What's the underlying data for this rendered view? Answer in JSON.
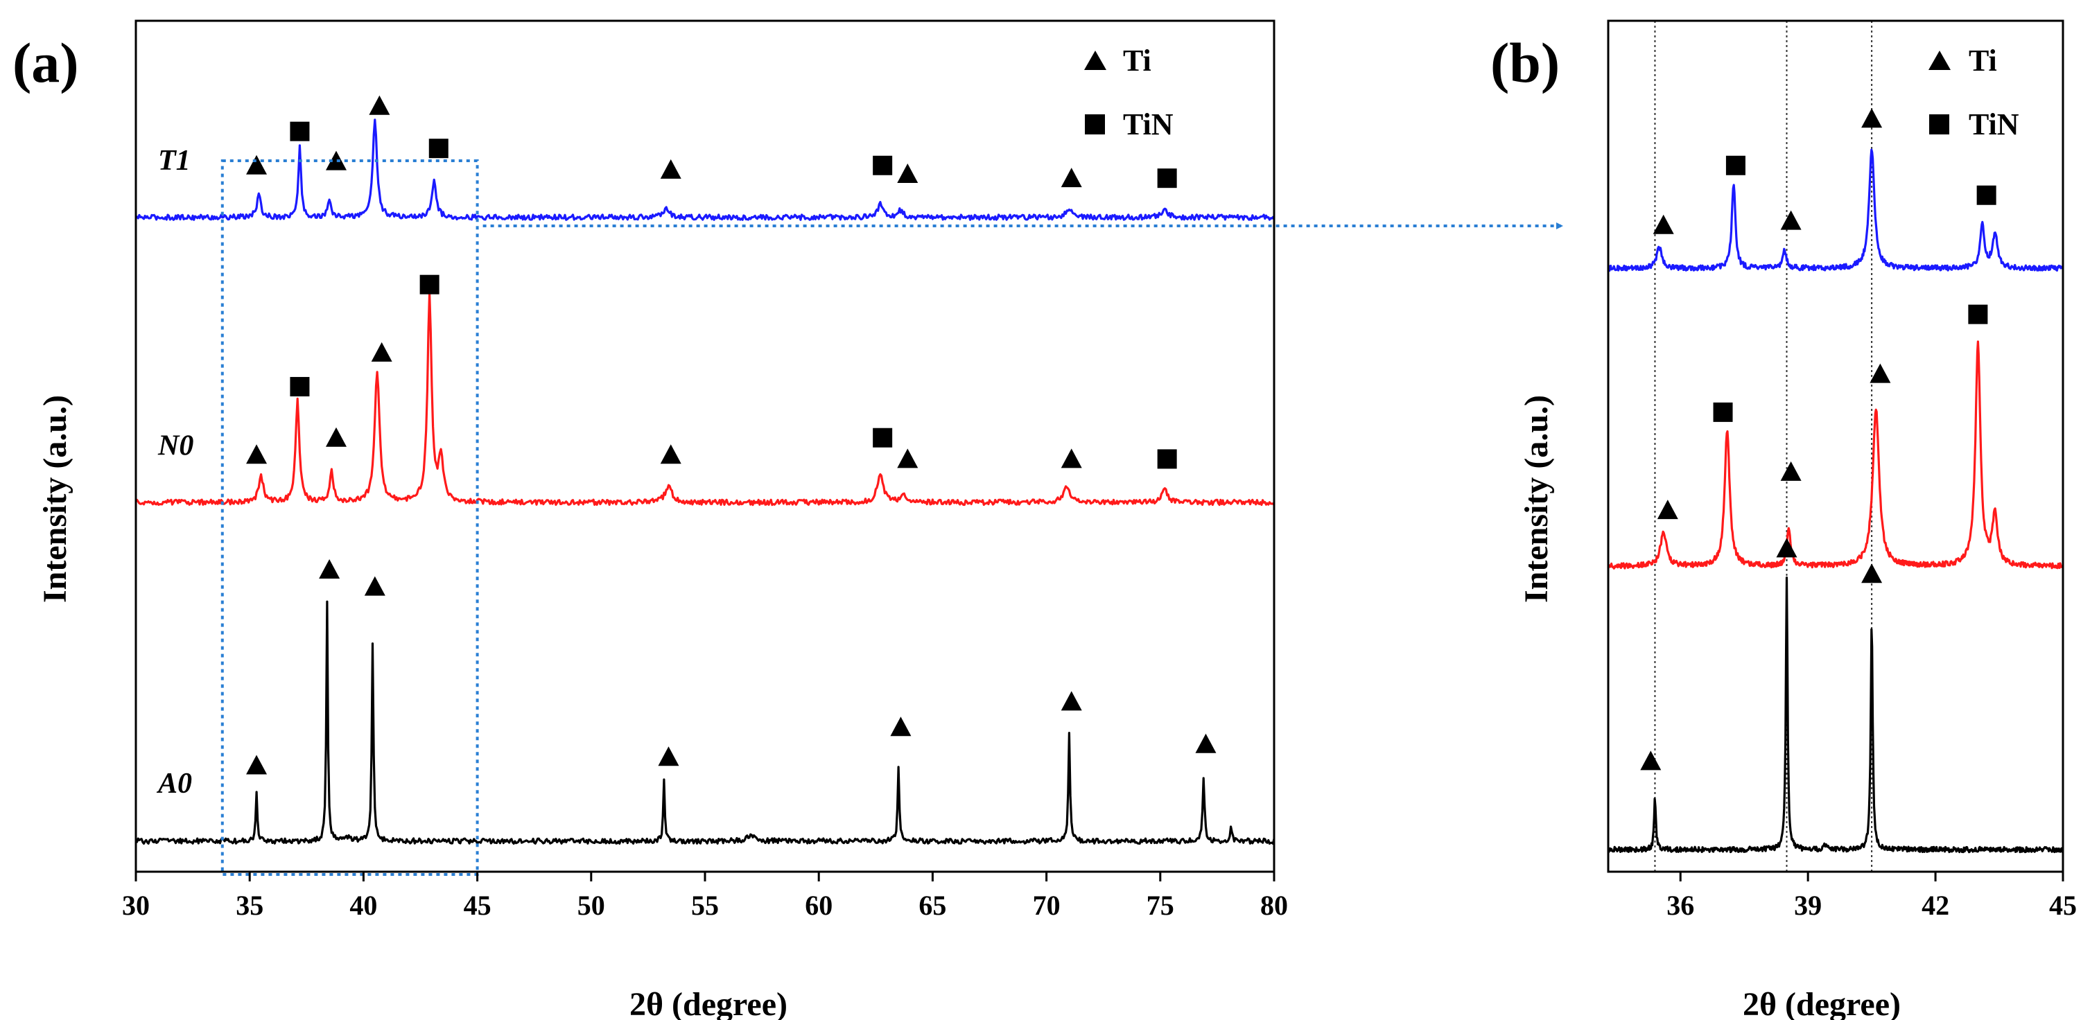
{
  "legend": {
    "ti_label": "Ti",
    "tin_label": "TiN"
  },
  "colors": {
    "T1": "#1a1aff",
    "N0": "#ff1a1a",
    "A0": "#000000",
    "zoom_box": "#2a7fd4",
    "axis": "#000000"
  },
  "chart_data": [
    {
      "panel_label": "(a)",
      "type": "line",
      "xlabel": "2θ (degree)",
      "ylabel": "Intensity (a.u.)",
      "xlim": [
        30,
        80
      ],
      "ylim": [
        0,
        10
      ],
      "xticks": [
        30,
        35,
        40,
        45,
        50,
        55,
        60,
        65,
        70,
        75,
        80
      ],
      "zoom_region": [
        33.8,
        45
      ],
      "series": [
        {
          "name": "T1",
          "offset": 7.6,
          "baseline": 0.09,
          "peaks": [
            [
              35.4,
              0.25,
              0.22
            ],
            [
              37.2,
              0.85,
              0.14
            ],
            [
              38.5,
              0.18,
              0.18
            ],
            [
              40.5,
              1.15,
              0.22
            ],
            [
              43.1,
              0.45,
              0.22
            ],
            [
              53.3,
              0.12,
              0.3
            ],
            [
              62.7,
              0.15,
              0.3
            ],
            [
              63.6,
              0.08,
              0.3
            ],
            [
              71.0,
              0.1,
              0.35
            ],
            [
              75.2,
              0.08,
              0.35
            ]
          ],
          "markers": [
            {
              "x": 35.3,
              "y": 8.3,
              "shape": "triangle"
            },
            {
              "x": 37.2,
              "y": 8.7,
              "shape": "square"
            },
            {
              "x": 38.8,
              "y": 8.35,
              "shape": "triangle"
            },
            {
              "x": 40.7,
              "y": 9.0,
              "shape": "triangle"
            },
            {
              "x": 43.3,
              "y": 8.5,
              "shape": "square"
            },
            {
              "x": 53.5,
              "y": 8.25,
              "shape": "triangle"
            },
            {
              "x": 62.8,
              "y": 8.3,
              "shape": "square"
            },
            {
              "x": 63.9,
              "y": 8.2,
              "shape": "triangle"
            },
            {
              "x": 71.1,
              "y": 8.15,
              "shape": "triangle"
            },
            {
              "x": 75.3,
              "y": 8.15,
              "shape": "square"
            }
          ]
        },
        {
          "name": "N0",
          "offset": 4.25,
          "baseline": 0.09,
          "peaks": [
            [
              35.5,
              0.3,
              0.25
            ],
            [
              37.1,
              1.2,
              0.2
            ],
            [
              38.6,
              0.35,
              0.2
            ],
            [
              40.6,
              1.55,
              0.25
            ],
            [
              42.9,
              2.4,
              0.22
            ],
            [
              43.4,
              0.5,
              0.25
            ],
            [
              53.4,
              0.2,
              0.35
            ],
            [
              62.7,
              0.35,
              0.3
            ],
            [
              63.7,
              0.1,
              0.3
            ],
            [
              70.9,
              0.18,
              0.35
            ],
            [
              75.2,
              0.15,
              0.3
            ]
          ],
          "markers": [
            {
              "x": 35.3,
              "y": 4.9,
              "shape": "triangle"
            },
            {
              "x": 37.2,
              "y": 5.7,
              "shape": "square"
            },
            {
              "x": 38.8,
              "y": 5.1,
              "shape": "triangle"
            },
            {
              "x": 40.8,
              "y": 6.1,
              "shape": "triangle"
            },
            {
              "x": 42.9,
              "y": 6.9,
              "shape": "square"
            },
            {
              "x": 53.5,
              "y": 4.9,
              "shape": "triangle"
            },
            {
              "x": 62.8,
              "y": 5.1,
              "shape": "square"
            },
            {
              "x": 63.9,
              "y": 4.85,
              "shape": "triangle"
            },
            {
              "x": 71.1,
              "y": 4.85,
              "shape": "triangle"
            },
            {
              "x": 75.3,
              "y": 4.85,
              "shape": "square"
            }
          ]
        },
        {
          "name": "A0",
          "offset": 0.28,
          "baseline": 0.08,
          "peaks": [
            [
              35.3,
              0.55,
              0.08
            ],
            [
              38.4,
              2.8,
              0.08
            ],
            [
              39.3,
              0.05,
              0.3
            ],
            [
              40.4,
              2.3,
              0.09
            ],
            [
              53.2,
              0.7,
              0.08
            ],
            [
              57.0,
              0.05,
              0.5
            ],
            [
              63.5,
              0.85,
              0.09
            ],
            [
              71.0,
              1.25,
              0.09
            ],
            [
              76.9,
              0.75,
              0.1
            ],
            [
              78.1,
              0.15,
              0.1
            ]
          ],
          "markers": [
            {
              "x": 35.3,
              "y": 1.25,
              "shape": "triangle"
            },
            {
              "x": 38.5,
              "y": 3.55,
              "shape": "triangle"
            },
            {
              "x": 40.5,
              "y": 3.35,
              "shape": "triangle"
            },
            {
              "x": 53.4,
              "y": 1.35,
              "shape": "triangle"
            },
            {
              "x": 63.6,
              "y": 1.7,
              "shape": "triangle"
            },
            {
              "x": 71.1,
              "y": 2.0,
              "shape": "triangle"
            },
            {
              "x": 77.0,
              "y": 1.5,
              "shape": "triangle"
            }
          ]
        }
      ]
    },
    {
      "panel_label": "(b)",
      "type": "line",
      "xlabel": "2θ (degree)",
      "ylabel": "Intensity (a.u.)",
      "xlim": [
        34.3,
        45
      ],
      "ylim": [
        0,
        10
      ],
      "xticks": [
        36,
        39,
        42,
        45
      ],
      "reference_lines": [
        35.4,
        38.5,
        40.5
      ],
      "series": [
        {
          "name": "T1",
          "offset": 7.0,
          "baseline": 0.09,
          "peaks": [
            [
              35.5,
              0.25,
              0.15
            ],
            [
              37.25,
              1.0,
              0.1
            ],
            [
              38.45,
              0.2,
              0.12
            ],
            [
              40.5,
              1.4,
              0.15
            ],
            [
              43.1,
              0.5,
              0.12
            ],
            [
              43.4,
              0.4,
              0.15
            ]
          ],
          "markers": [
            {
              "x": 35.6,
              "y": 7.6,
              "shape": "triangle"
            },
            {
              "x": 37.3,
              "y": 8.3,
              "shape": "square"
            },
            {
              "x": 38.6,
              "y": 7.65,
              "shape": "triangle"
            },
            {
              "x": 40.5,
              "y": 8.85,
              "shape": "triangle"
            },
            {
              "x": 43.2,
              "y": 7.95,
              "shape": "square"
            }
          ]
        },
        {
          "name": "N0",
          "offset": 3.5,
          "baseline": 0.09,
          "peaks": [
            [
              35.6,
              0.4,
              0.17
            ],
            [
              37.1,
              1.6,
              0.14
            ],
            [
              38.55,
              0.45,
              0.1
            ],
            [
              40.6,
              1.85,
              0.18
            ],
            [
              43.0,
              2.6,
              0.14
            ],
            [
              43.4,
              0.6,
              0.14
            ]
          ],
          "markers": [
            {
              "x": 35.7,
              "y": 4.25,
              "shape": "triangle"
            },
            {
              "x": 37.0,
              "y": 5.4,
              "shape": "square"
            },
            {
              "x": 38.6,
              "y": 4.7,
              "shape": "triangle"
            },
            {
              "x": 40.7,
              "y": 5.85,
              "shape": "triangle"
            },
            {
              "x": 43.0,
              "y": 6.55,
              "shape": "square"
            }
          ]
        },
        {
          "name": "A0",
          "offset": 0.2,
          "baseline": 0.06,
          "peaks": [
            [
              35.4,
              0.6,
              0.05
            ],
            [
              38.5,
              3.2,
              0.05
            ],
            [
              39.4,
              0.05,
              0.1
            ],
            [
              40.5,
              2.7,
              0.055
            ]
          ],
          "markers": [
            {
              "x": 35.3,
              "y": 1.3,
              "shape": "triangle"
            },
            {
              "x": 38.5,
              "y": 3.8,
              "shape": "triangle"
            },
            {
              "x": 40.5,
              "y": 3.5,
              "shape": "triangle"
            }
          ]
        }
      ]
    }
  ]
}
